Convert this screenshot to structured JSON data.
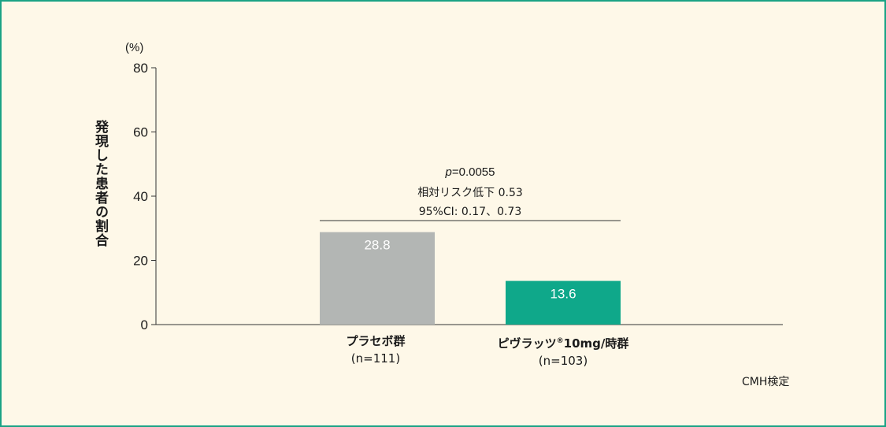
{
  "colors": {
    "border": "#1aa385",
    "background": "#fef8e8",
    "placebo_bar": "#b3b6b4",
    "treatment_bar": "#0fa88a",
    "axis": "#333333"
  },
  "chart_data": {
    "type": "bar",
    "categories": [
      "プラセボ群",
      "ピヴラッツ®10mg/時群"
    ],
    "category_names": [
      "プラセボ群",
      "ピヴラッツ"
    ],
    "category_name_suffix": [
      "",
      "10mg/時群"
    ],
    "category_marks": [
      "",
      "®"
    ],
    "category_n": [
      "(n=111)",
      "(n=103)"
    ],
    "values": [
      28.8,
      13.6
    ],
    "value_labels": [
      "28.8",
      "13.6"
    ],
    "bar_colors": [
      "#b3b6b4",
      "#0fa88a"
    ],
    "ylabel": "発現した患者の割合",
    "yunit": "(%)",
    "ylim": [
      0,
      80
    ],
    "yticks": [
      0,
      20,
      40,
      60,
      80
    ],
    "ytick_labels": [
      "0",
      "20",
      "40",
      "60",
      "80"
    ],
    "grid": false,
    "annotation": {
      "p_label": "p",
      "p_value": "=0.0055",
      "relative_risk_reduction": "相対リスク低下 0.53",
      "ci": "95%CI: 0.17、0.73"
    },
    "footnote": "CMH検定"
  }
}
